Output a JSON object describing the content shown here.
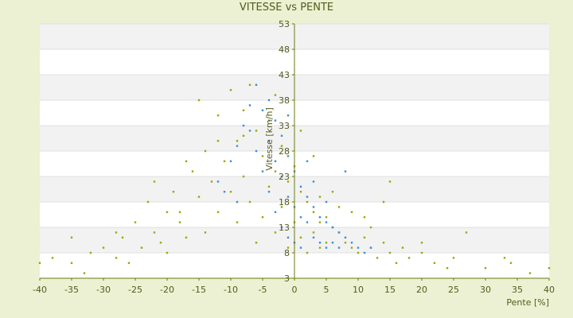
{
  "chart_data": {
    "type": "scatter",
    "title": "VITESSE vs PENTE",
    "xlabel": "Pente [%]",
    "ylabel": "Vitesse [km/h]",
    "xlim": [
      -40,
      40
    ],
    "ylim": [
      3,
      53
    ],
    "x_ticks": [
      "-40",
      "-35",
      "-30",
      "-25",
      "-20",
      "-15",
      "-10",
      "-5",
      "0",
      "5",
      "10",
      "15",
      "20",
      "25",
      "30",
      "35",
      "40"
    ],
    "y_ticks": [
      "3",
      "8",
      "13",
      "18",
      "23",
      "28",
      "33",
      "38",
      "43",
      "48",
      "53"
    ],
    "grid": true,
    "legend": "none",
    "colors": {
      "background": "#ebf1d2",
      "band_light": "#ffffff",
      "band_shade": "#f2f2f2",
      "series_a": "#9aa800",
      "series_b": "#3a8fd8",
      "axis": "#6b7a10",
      "text": "#555a1e"
    },
    "series": [
      {
        "color": "#9aa800",
        "points": [
          [
            -40,
            6
          ],
          [
            -38,
            7
          ],
          [
            -35,
            6
          ],
          [
            -33,
            4
          ],
          [
            -32,
            8
          ],
          [
            -30,
            9
          ],
          [
            -28,
            7
          ],
          [
            -27,
            11
          ],
          [
            -26,
            6
          ],
          [
            -25,
            14
          ],
          [
            -24,
            9
          ],
          [
            -23,
            18
          ],
          [
            -22,
            12
          ],
          [
            -21,
            10
          ],
          [
            -20,
            16
          ],
          [
            -20,
            8
          ],
          [
            -19,
            20
          ],
          [
            -18,
            14
          ],
          [
            -17,
            11
          ],
          [
            -16,
            24
          ],
          [
            -15,
            38
          ],
          [
            -15,
            19
          ],
          [
            -14,
            28
          ],
          [
            -14,
            12
          ],
          [
            -13,
            22
          ],
          [
            -12,
            35
          ],
          [
            -12,
            16
          ],
          [
            -11,
            26
          ],
          [
            -10,
            40
          ],
          [
            -10,
            20
          ],
          [
            -9,
            30
          ],
          [
            -9,
            14
          ],
          [
            -8,
            36
          ],
          [
            -8,
            23
          ],
          [
            -7,
            41
          ],
          [
            -7,
            18
          ],
          [
            -6,
            32
          ],
          [
            -6,
            10
          ],
          [
            -5,
            27
          ],
          [
            -5,
            15
          ],
          [
            -4,
            34
          ],
          [
            -4,
            21
          ],
          [
            -3,
            24
          ],
          [
            -3,
            12
          ],
          [
            -2,
            29
          ],
          [
            -2,
            17
          ],
          [
            -1,
            22
          ],
          [
            -1,
            9
          ],
          [
            0,
            25
          ],
          [
            0,
            14
          ],
          [
            1,
            20
          ],
          [
            1,
            11
          ],
          [
            2,
            18
          ],
          [
            2,
            8
          ],
          [
            3,
            16
          ],
          [
            3,
            12
          ],
          [
            4,
            14
          ],
          [
            4,
            9
          ],
          [
            5,
            15
          ],
          [
            5,
            10
          ],
          [
            6,
            13
          ],
          [
            7,
            12
          ],
          [
            8,
            10
          ],
          [
            9,
            9
          ],
          [
            10,
            8
          ],
          [
            11,
            11
          ],
          [
            12,
            9
          ],
          [
            13,
            7
          ],
          [
            14,
            10
          ],
          [
            15,
            8
          ],
          [
            16,
            6
          ],
          [
            17,
            9
          ],
          [
            18,
            7
          ],
          [
            20,
            8
          ],
          [
            22,
            6
          ],
          [
            24,
            5
          ],
          [
            25,
            7
          ],
          [
            27,
            12
          ],
          [
            30,
            5
          ],
          [
            34,
            6
          ],
          [
            37,
            4
          ],
          [
            40,
            5
          ],
          [
            -17,
            26
          ],
          [
            -12,
            30
          ],
          [
            -3,
            39
          ],
          [
            1,
            32
          ],
          [
            3,
            27
          ],
          [
            6,
            20
          ],
          [
            9,
            16
          ],
          [
            12,
            13
          ],
          [
            15,
            22
          ],
          [
            20,
            10
          ],
          [
            33,
            7
          ],
          [
            -35,
            11
          ],
          [
            -28,
            12
          ],
          [
            -22,
            22
          ],
          [
            -18,
            16
          ],
          [
            -8,
            31
          ],
          [
            4,
            19
          ],
          [
            7,
            17
          ],
          [
            11,
            15
          ],
          [
            14,
            18
          ]
        ]
      },
      {
        "color": "#3a8fd8",
        "points": [
          [
            -12,
            22
          ],
          [
            -10,
            26
          ],
          [
            -9,
            29
          ],
          [
            -8,
            33
          ],
          [
            -7,
            37
          ],
          [
            -6,
            41
          ],
          [
            -6,
            28
          ],
          [
            -5,
            36
          ],
          [
            -5,
            24
          ],
          [
            -4,
            30
          ],
          [
            -4,
            20
          ],
          [
            -3,
            34
          ],
          [
            -3,
            26
          ],
          [
            -3,
            16
          ],
          [
            -2,
            31
          ],
          [
            -2,
            23
          ],
          [
            -2,
            13
          ],
          [
            -1,
            27
          ],
          [
            -1,
            19
          ],
          [
            -1,
            11
          ],
          [
            0,
            24
          ],
          [
            0,
            17
          ],
          [
            0,
            10
          ],
          [
            1,
            21
          ],
          [
            1,
            15
          ],
          [
            1,
            9
          ],
          [
            2,
            19
          ],
          [
            2,
            14
          ],
          [
            3,
            17
          ],
          [
            3,
            11
          ],
          [
            4,
            15
          ],
          [
            4,
            10
          ],
          [
            5,
            14
          ],
          [
            5,
            9
          ],
          [
            6,
            13
          ],
          [
            6,
            10
          ],
          [
            7,
            12
          ],
          [
            7,
            9
          ],
          [
            8,
            11
          ],
          [
            9,
            10
          ],
          [
            10,
            9
          ],
          [
            11,
            8
          ],
          [
            12,
            9
          ],
          [
            -7,
            32
          ],
          [
            -11,
            20
          ],
          [
            -9,
            18
          ],
          [
            8,
            24
          ],
          [
            2,
            26
          ],
          [
            -4,
            38
          ],
          [
            -1,
            35
          ],
          [
            5,
            18
          ],
          [
            3,
            22
          ]
        ]
      }
    ]
  }
}
